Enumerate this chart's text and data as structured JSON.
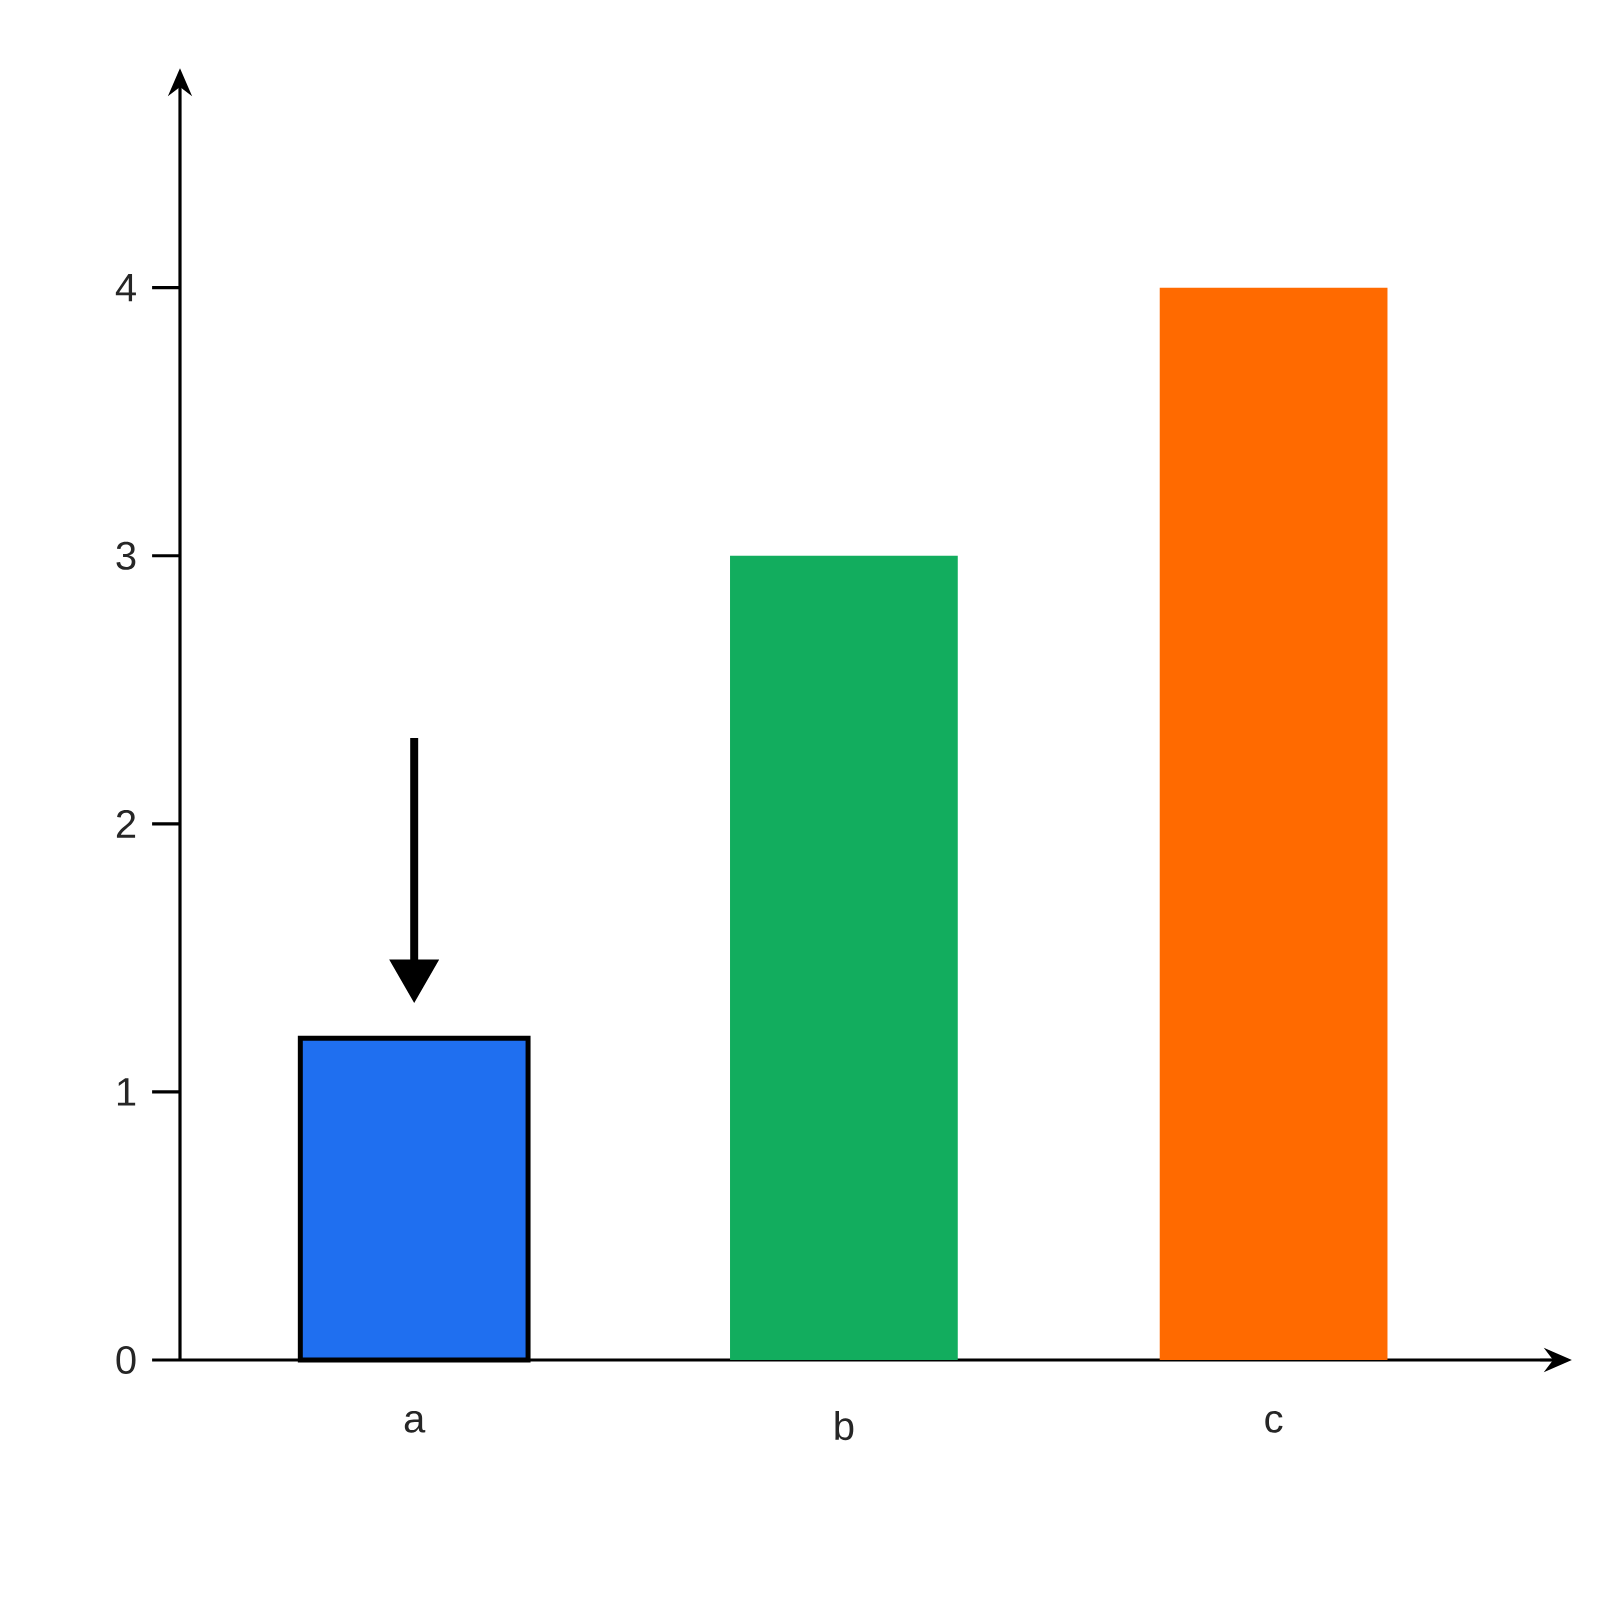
{
  "chart_data": {
    "type": "bar",
    "categories": [
      "a",
      "b",
      "c"
    ],
    "values": [
      1.2,
      3,
      4
    ],
    "colors": [
      "#1f6ff0",
      "#12ad5e",
      "#ff6a00"
    ],
    "ylim": [
      0,
      4.7
    ],
    "yticks": [
      0,
      1,
      2,
      3,
      4
    ]
  }
}
